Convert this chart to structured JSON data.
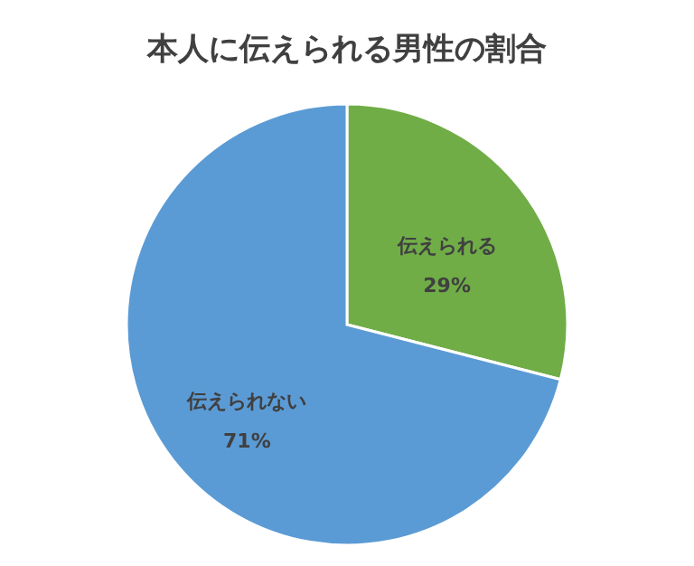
{
  "chart_data": {
    "type": "pie",
    "title": "本人に伝えられる男性の割合",
    "categories": [
      "伝えられる",
      "伝えられない"
    ],
    "values": [
      29,
      71
    ],
    "colors": [
      "#70ad47",
      "#5b9bd5"
    ],
    "value_labels": [
      "29%",
      "71%"
    ]
  }
}
